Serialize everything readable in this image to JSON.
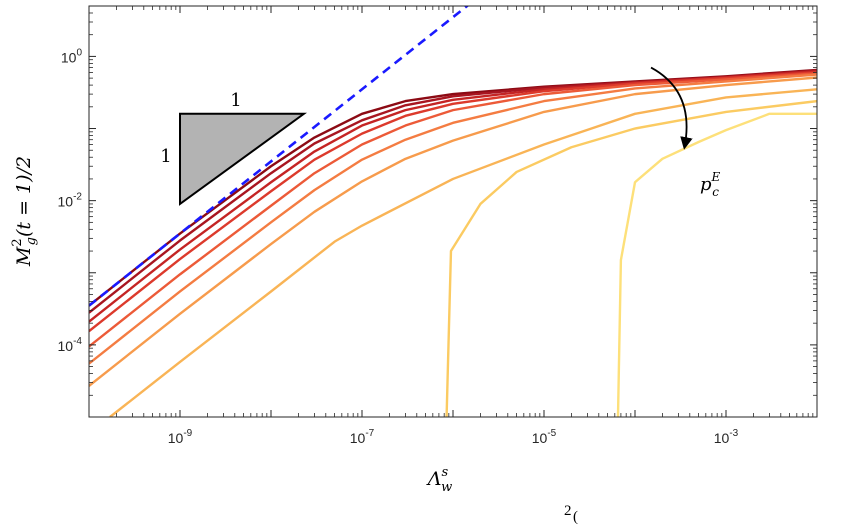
{
  "chart_data": {
    "type": "line",
    "xscale": "log",
    "yscale": "log",
    "xlim": [
      1e-10,
      0.01
    ],
    "ylim": [
      1e-05,
      5
    ],
    "grid": false,
    "xlabel": {
      "base": "Λ",
      "sup": "s",
      "sub": "w"
    },
    "ylabel": {
      "pre": "M",
      "sup": "2",
      "sub": "g",
      "post": "(t = 1)/2"
    },
    "xticks": [
      {
        "mantissa": "10",
        "exp": "-9",
        "value": 1e-09
      },
      {
        "mantissa": "10",
        "exp": "-7",
        "value": 1e-07
      },
      {
        "mantissa": "10",
        "exp": "-5",
        "value": 1e-05
      },
      {
        "mantissa": "10",
        "exp": "-3",
        "value": 0.001
      }
    ],
    "yticks": [
      {
        "mantissa": "10",
        "exp": "0",
        "value": 1
      },
      {
        "mantissa": "10",
        "exp": "-2",
        "value": 0.01
      },
      {
        "mantissa": "10",
        "exp": "-4",
        "value": 0.0001
      }
    ],
    "reference_line": {
      "style": "dashed",
      "color": "#1a1aff",
      "points": [
        [
          1e-10,
          0.00035
        ],
        [
          1.8e-06,
          6.3
        ]
      ]
    },
    "slope_triangle": {
      "vertices": [
        [
          1e-09,
          0.009
        ],
        [
          1e-09,
          0.16
        ],
        [
          2.3e-08,
          0.16
        ]
      ],
      "fill": "#b3b3b3",
      "labels": [
        "1",
        "1"
      ]
    },
    "direction_arrow": {
      "label_base": "p",
      "label_sub": "c",
      "label_sup": "E",
      "from": [
        0.00015,
        0.7
      ],
      "to": [
        0.00035,
        0.055
      ]
    },
    "series": [
      {
        "color": "#8c0a14",
        "points": [
          [
            1e-10,
            0.00035
          ],
          [
            1e-09,
            0.0035
          ],
          [
            1e-08,
            0.03
          ],
          [
            3e-08,
            0.075
          ],
          [
            1e-07,
            0.16
          ],
          [
            3e-07,
            0.24
          ],
          [
            1e-06,
            0.3
          ],
          [
            1e-05,
            0.38
          ],
          [
            0.0001,
            0.45
          ],
          [
            0.001,
            0.53
          ],
          [
            0.01,
            0.65
          ]
        ]
      },
      {
        "color": "#a81520",
        "points": [
          [
            1e-10,
            0.00028
          ],
          [
            1e-09,
            0.0028
          ],
          [
            1e-08,
            0.024
          ],
          [
            3e-08,
            0.062
          ],
          [
            1e-07,
            0.13
          ],
          [
            3e-07,
            0.21
          ],
          [
            1e-06,
            0.28
          ],
          [
            1e-05,
            0.37
          ],
          [
            0.0001,
            0.44
          ],
          [
            0.001,
            0.52
          ],
          [
            0.01,
            0.64
          ]
        ]
      },
      {
        "color": "#c42424",
        "points": [
          [
            1e-10,
            0.00021
          ],
          [
            1e-09,
            0.0021
          ],
          [
            1e-08,
            0.018
          ],
          [
            3e-08,
            0.048
          ],
          [
            1e-07,
            0.11
          ],
          [
            3e-07,
            0.18
          ],
          [
            1e-06,
            0.25
          ],
          [
            1e-05,
            0.35
          ],
          [
            0.0001,
            0.43
          ],
          [
            0.001,
            0.51
          ],
          [
            0.01,
            0.62
          ]
        ]
      },
      {
        "color": "#dc3a2c",
        "points": [
          [
            1e-10,
            0.000155
          ],
          [
            1e-09,
            0.00155
          ],
          [
            1e-08,
            0.0135
          ],
          [
            3e-08,
            0.037
          ],
          [
            1e-07,
            0.085
          ],
          [
            3e-07,
            0.15
          ],
          [
            1e-06,
            0.22
          ],
          [
            1e-05,
            0.33
          ],
          [
            0.0001,
            0.42
          ],
          [
            0.001,
            0.5
          ],
          [
            0.01,
            0.6
          ]
        ]
      },
      {
        "color": "#ec5a38",
        "points": [
          [
            1e-10,
            9.5e-05
          ],
          [
            1e-09,
            0.00095
          ],
          [
            1e-08,
            0.0085
          ],
          [
            3e-08,
            0.024
          ],
          [
            1e-07,
            0.06
          ],
          [
            3e-07,
            0.11
          ],
          [
            1e-06,
            0.18
          ],
          [
            1e-05,
            0.3
          ],
          [
            0.0001,
            0.4
          ],
          [
            0.001,
            0.48
          ],
          [
            0.01,
            0.58
          ]
        ]
      },
      {
        "color": "#f47c42",
        "points": [
          [
            1e-10,
            5.5e-05
          ],
          [
            1e-09,
            0.00055
          ],
          [
            1e-08,
            0.005
          ],
          [
            3e-08,
            0.014
          ],
          [
            1e-07,
            0.037
          ],
          [
            3e-07,
            0.07
          ],
          [
            1e-06,
            0.12
          ],
          [
            1e-05,
            0.24
          ],
          [
            0.0001,
            0.36
          ],
          [
            0.001,
            0.45
          ],
          [
            0.01,
            0.56
          ]
        ]
      },
      {
        "color": "#f79b4c",
        "points": [
          [
            1e-10,
            2.7e-05
          ],
          [
            1e-09,
            0.00027
          ],
          [
            1e-08,
            0.0025
          ],
          [
            3e-08,
            0.007
          ],
          [
            1e-07,
            0.0185
          ],
          [
            3e-07,
            0.038
          ],
          [
            1e-06,
            0.068
          ],
          [
            1e-05,
            0.17
          ],
          [
            0.0001,
            0.3
          ],
          [
            0.001,
            0.4
          ],
          [
            0.01,
            0.51
          ]
        ]
      },
      {
        "color": "#f9b456",
        "points": [
          [
            1.7e-10,
            1e-05
          ],
          [
            1e-09,
            5.8e-05
          ],
          [
            1e-08,
            0.00055
          ],
          [
            5e-08,
            0.0027
          ],
          [
            1e-07,
            0.0045
          ],
          [
            1e-06,
            0.02
          ],
          [
            1e-05,
            0.06
          ],
          [
            0.0001,
            0.16
          ],
          [
            0.001,
            0.27
          ],
          [
            0.01,
            0.35
          ]
        ]
      },
      {
        "color": "#fbcb62",
        "points": [
          [
            8.5e-07,
            1e-05
          ],
          [
            9.5e-07,
            0.002
          ],
          [
            2e-06,
            0.009
          ],
          [
            5e-06,
            0.025
          ],
          [
            2e-05,
            0.055
          ],
          [
            0.0001,
            0.1
          ],
          [
            0.001,
            0.17
          ],
          [
            0.01,
            0.24
          ]
        ]
      },
      {
        "color": "#fde07a",
        "points": [
          [
            6.5e-05,
            1e-05
          ],
          [
            7e-05,
            0.0015
          ],
          [
            0.0001,
            0.018
          ],
          [
            0.0002,
            0.038
          ],
          [
            0.0005,
            0.065
          ],
          [
            0.001,
            0.095
          ],
          [
            0.003,
            0.16
          ],
          [
            0.01,
            0.16
          ]
        ]
      }
    ]
  },
  "caption": {
    "text": "",
    "math": "2",
    "tail": "("
  }
}
